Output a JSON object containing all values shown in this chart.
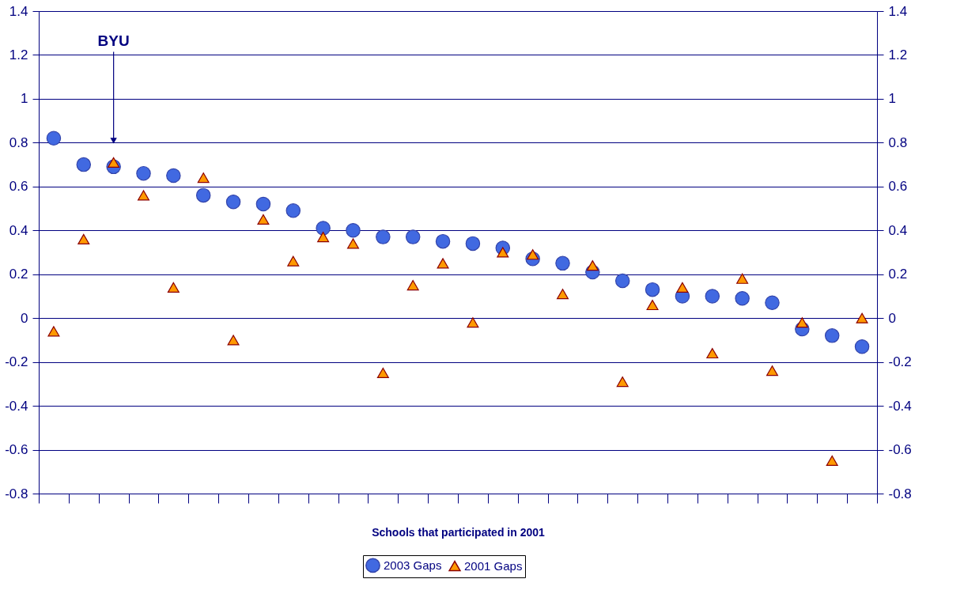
{
  "chart_data": {
    "type": "scatter",
    "xlabel": "Schools that participated in 2001",
    "categories": [
      null,
      null,
      null,
      null,
      null,
      null,
      null,
      null,
      null,
      null,
      null,
      null,
      null,
      null,
      null,
      null,
      null,
      null,
      null,
      null,
      null,
      null,
      null,
      null,
      null,
      null,
      null,
      null
    ],
    "series": [
      {
        "name": "2003 Gaps",
        "color": "#4169e1",
        "marker": "circle",
        "values": [
          0.82,
          0.7,
          0.69,
          0.66,
          0.65,
          0.56,
          0.53,
          0.52,
          0.49,
          0.41,
          0.4,
          0.37,
          0.37,
          0.35,
          0.34,
          0.32,
          0.27,
          0.25,
          0.21,
          0.17,
          0.13,
          0.1,
          0.1,
          0.09,
          0.07,
          -0.05,
          -0.08,
          -0.13
        ]
      },
      {
        "name": "2001 Gaps",
        "color": "#ff9900",
        "marker": "triangle",
        "values": [
          -0.06,
          0.36,
          0.71,
          0.56,
          0.14,
          0.64,
          -0.1,
          0.45,
          0.26,
          0.37,
          0.34,
          -0.25,
          0.15,
          0.25,
          -0.02,
          0.3,
          0.29,
          0.11,
          0.24,
          -0.29,
          0.06,
          0.14,
          -0.16,
          0.18,
          -0.24,
          -0.02,
          -0.65,
          0.0
        ]
      }
    ],
    "ylim": [
      -0.8,
      1.4
    ],
    "yticks": [
      -0.8,
      -0.6,
      -0.4,
      -0.2,
      0,
      0.2,
      0.4,
      0.6,
      0.8,
      1,
      1.2,
      1.4
    ],
    "y2lim": [
      -0.8,
      1.4
    ],
    "y2ticks": [
      -0.8,
      -0.6,
      -0.4,
      -0.2,
      0,
      0.2,
      0.4,
      0.6,
      0.8,
      1,
      1.2,
      1.4
    ],
    "annotations": [
      "BYU"
    ],
    "grid": "y",
    "legend": "bottom"
  }
}
